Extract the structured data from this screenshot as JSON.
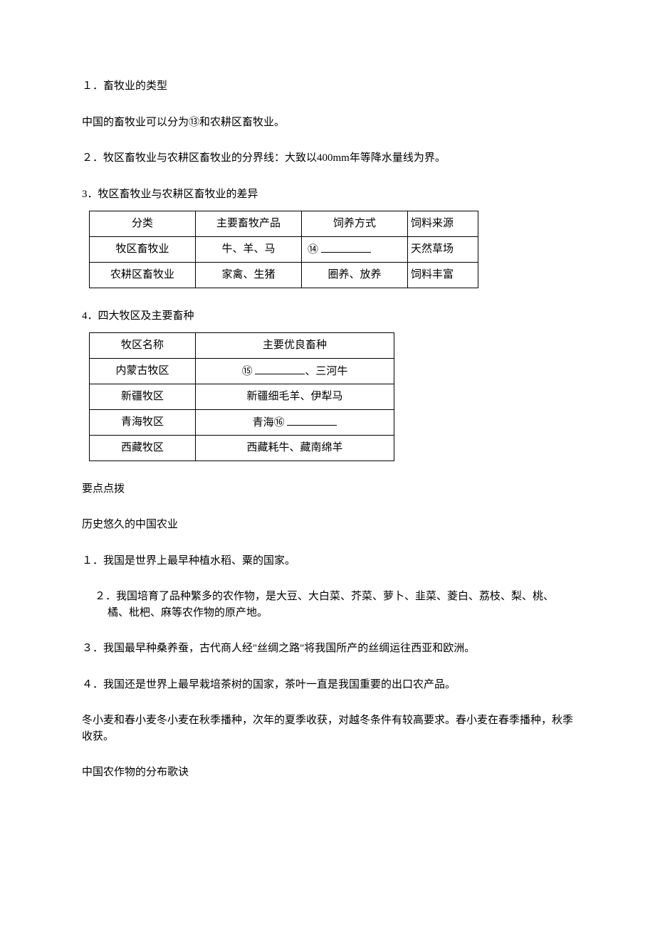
{
  "s1": {
    "heading": "１．畜牧业的类型",
    "p1a": "中国的畜牧业可以分为",
    "p1_circ": "⑬",
    "p1b": "和农耕区畜牧业。"
  },
  "s2": {
    "heading": "２．牧区畜牧业与农耕区畜牧业的分界线：大致以400mm年等降水量线为界。"
  },
  "s3": {
    "heading": "3．牧区畜牧业与农耕区畜牧业的差异",
    "table": {
      "h1": "分类",
      "h2": "主要畜牧产品",
      "h3": "饲养方式",
      "h4": "饲料来源",
      "r1c1": "牧区畜牧业",
      "r1c2": "牛、羊、马",
      "r1c3_circ": "⑭",
      "r1c4": "天然草场",
      "r2c1": "农耕区畜牧业",
      "r2c2": "家禽、生猪",
      "r2c3": "圈养、放养",
      "r2c4": "饲料丰富"
    }
  },
  "s4": {
    "heading": "4．四大牧区及主要畜种",
    "table": {
      "h1": "牧区名称",
      "h2": "主要优良畜种",
      "r1c1": "内蒙古牧区",
      "r1c2_circ": "⑮",
      "r1c2_tail": "、三河牛",
      "r2c1": "新疆牧区",
      "r2c2": "新疆细毛羊、伊犁马",
      "r3c1": "青海牧区",
      "r3c2_pre": "青海",
      "r3c2_circ": "⑯",
      "r4c1": "西藏牧区",
      "r4c2": "西藏耗牛、藏南绵羊"
    }
  },
  "tips_title": "要点点拨",
  "hist_title": "历史悠久的中国农业",
  "hist": {
    "p1": "１．我国是世界上最早种植水稻、粟的国家。",
    "p2": "２．我国培育了品种繁多的农作物，是大豆、大白菜、芥菜、萝卜、韭菜、菱白、荔枝、梨、桃、橘、枇杷、麻等农作物的原产地。",
    "p3": "３．我国最早种桑养蚕，古代商人经\"丝绸之路\"将我国所产的丝绸运往西亚和欧洲。",
    "p4": "４．我国还是世界上最早栽培茶树的国家，茶叶一直是我国重要的出口农产品。"
  },
  "wheat": "冬小麦和春小麦冬小麦在秋季播种，次年的夏季收获，对越冬条件有较高要求。春小麦在春季播种，秋季收获。",
  "song_title": "中国农作物的分布歌诀"
}
